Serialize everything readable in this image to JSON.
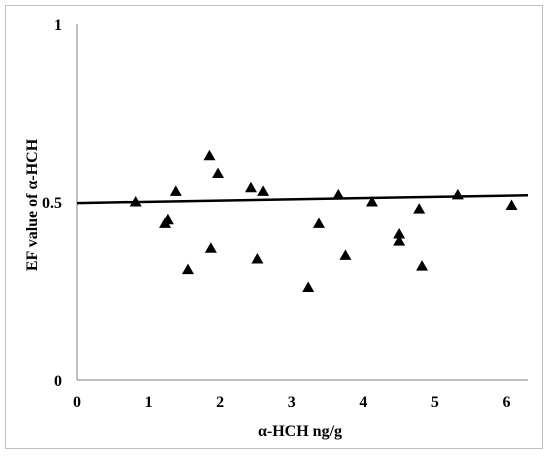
{
  "chart_data": {
    "type": "scatter",
    "title": "",
    "xlabel": "α-HCH ng/g",
    "ylabel": "EF value of α-HCH",
    "xlim": [
      0,
      6.3
    ],
    "ylim": [
      0,
      1
    ],
    "x_ticks": [
      "0",
      "1",
      "2",
      "3",
      "4",
      "5",
      "6"
    ],
    "y_ticks": [
      "0",
      "0.5",
      "1"
    ],
    "grid": false,
    "marker": "triangle",
    "color": "#000000",
    "points": [
      {
        "x": 0.82,
        "y": 0.5
      },
      {
        "x": 1.23,
        "y": 0.44
      },
      {
        "x": 1.27,
        "y": 0.45
      },
      {
        "x": 1.38,
        "y": 0.53
      },
      {
        "x": 1.55,
        "y": 0.31
      },
      {
        "x": 1.85,
        "y": 0.63
      },
      {
        "x": 1.87,
        "y": 0.37
      },
      {
        "x": 1.97,
        "y": 0.58
      },
      {
        "x": 2.43,
        "y": 0.54
      },
      {
        "x": 2.52,
        "y": 0.34
      },
      {
        "x": 2.6,
        "y": 0.53
      },
      {
        "x": 3.23,
        "y": 0.26
      },
      {
        "x": 3.38,
        "y": 0.44
      },
      {
        "x": 3.65,
        "y": 0.52
      },
      {
        "x": 3.75,
        "y": 0.35
      },
      {
        "x": 4.12,
        "y": 0.5
      },
      {
        "x": 4.5,
        "y": 0.41
      },
      {
        "x": 4.5,
        "y": 0.39
      },
      {
        "x": 4.78,
        "y": 0.48
      },
      {
        "x": 4.82,
        "y": 0.32
      },
      {
        "x": 5.32,
        "y": 0.52
      },
      {
        "x": 6.07,
        "y": 0.49
      }
    ],
    "trendline": {
      "x": [
        0,
        6.3
      ],
      "y": [
        0.497,
        0.519
      ]
    }
  }
}
